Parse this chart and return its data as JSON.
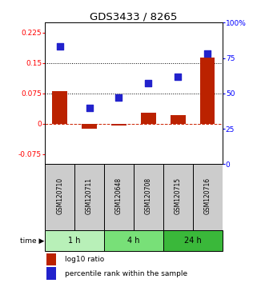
{
  "title": "GDS3433 / 8265",
  "samples": [
    "GSM120710",
    "GSM120711",
    "GSM120648",
    "GSM120708",
    "GSM120715",
    "GSM120716"
  ],
  "log10_ratio": [
    0.08,
    -0.012,
    -0.005,
    0.028,
    0.022,
    0.163
  ],
  "percentile_rank": [
    83,
    40,
    47,
    57,
    62,
    78
  ],
  "groups": [
    {
      "label": "1 h",
      "indices": [
        0,
        1
      ],
      "color": "#b8f0b8"
    },
    {
      "label": "4 h",
      "indices": [
        2,
        3
      ],
      "color": "#78e078"
    },
    {
      "label": "24 h",
      "indices": [
        4,
        5
      ],
      "color": "#3ab83a"
    }
  ],
  "ylim_left": [
    -0.1,
    0.25
  ],
  "ylim_right": [
    0,
    100
  ],
  "yticks_left": [
    -0.075,
    0,
    0.075,
    0.15,
    0.225
  ],
  "yticks_right": [
    0,
    25,
    50,
    75,
    100
  ],
  "ytick_labels_left": [
    "-0.075",
    "0",
    "0.075",
    "0.15",
    "0.225"
  ],
  "ytick_labels_right": [
    "0",
    "25",
    "50",
    "75",
    "100%"
  ],
  "hlines_dotted": [
    0.075,
    0.15
  ],
  "hline_dashed_red": 0,
  "bar_color": "#bb2200",
  "dot_color": "#2222cc",
  "bar_width": 0.5,
  "dot_size": 35,
  "time_label": "time",
  "legend_bar_label": "log10 ratio",
  "legend_dot_label": "percentile rank within the sample",
  "sample_box_color": "#cccccc",
  "title_fontsize": 9.5,
  "tick_fontsize": 6.5,
  "legend_fontsize": 6.5
}
